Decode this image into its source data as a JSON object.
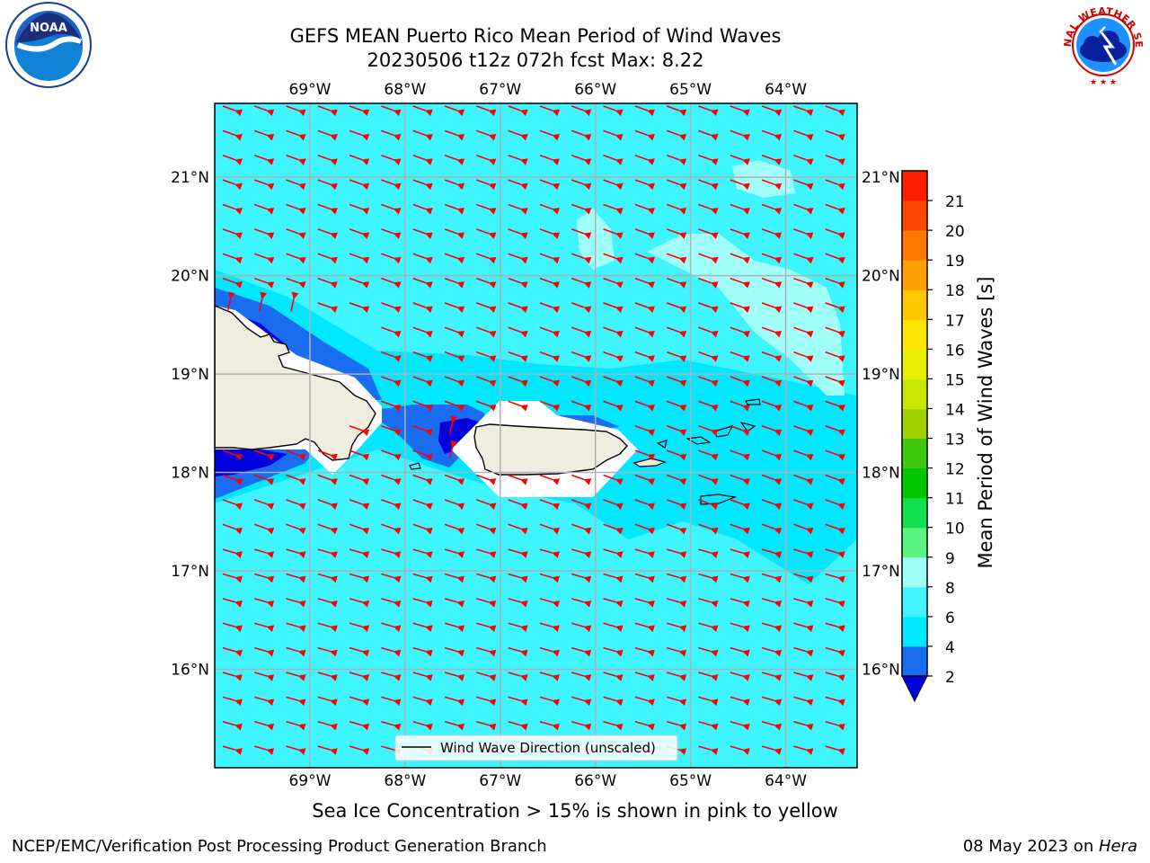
{
  "header": {
    "title_line1": "GEFS MEAN Puerto Rico Mean Period of Wind Waves",
    "title_line2": "20230506 t12z 072h fcst   Max: 8.22"
  },
  "logos": {
    "left": {
      "icon": "noaa-logo",
      "text": "NOAA"
    },
    "right": {
      "icon": "national-weather-service-logo",
      "text": "NATIONAL WEATHER SERVICE"
    }
  },
  "map": {
    "lon_ticks": [
      "69°W",
      "68°W",
      "67°W",
      "66°W",
      "65°W",
      "64°W"
    ],
    "lat_ticks": [
      "21°N",
      "20°N",
      "19°N",
      "18°N",
      "17°N",
      "16°N"
    ],
    "lon_values": [
      -69,
      -68,
      -67,
      -66,
      -65,
      -64
    ],
    "lat_values": [
      21,
      20,
      19,
      18,
      17,
      16
    ],
    "extent": {
      "lon_min": -70,
      "lon_max": -63.25,
      "lat_min": 15,
      "lat_max": 21.75
    },
    "arrow_color": "#ff0000",
    "legend_label": "Wind Wave Direction (unscaled)"
  },
  "colorbar": {
    "label": "Mean Period of Wind Waves [s]",
    "ticks": [
      "2",
      "4",
      "6",
      "8",
      "9",
      "10",
      "11",
      "12",
      "13",
      "14",
      "15",
      "16",
      "17",
      "18",
      "19",
      "20",
      "21"
    ],
    "colors": [
      "#1a6cf0",
      "#00e8ff",
      "#3ff5ff",
      "#a0fff8",
      "#5af580",
      "#10e050",
      "#00c800",
      "#40c810",
      "#a0d200",
      "#c8e600",
      "#e6f000",
      "#ffe600",
      "#ffc800",
      "#ffa000",
      "#ff7800",
      "#ff4600",
      "#ff1e00"
    ],
    "under_color": "#0000dd"
  },
  "caption": "Sea Ice Concentration > 15% is shown in pink to yellow",
  "footer": {
    "left": "NCEP/EMC/Verification Post Processing Product Generation Branch",
    "right_prefix": "08 May 2023 on ",
    "right_host": "Hera"
  }
}
